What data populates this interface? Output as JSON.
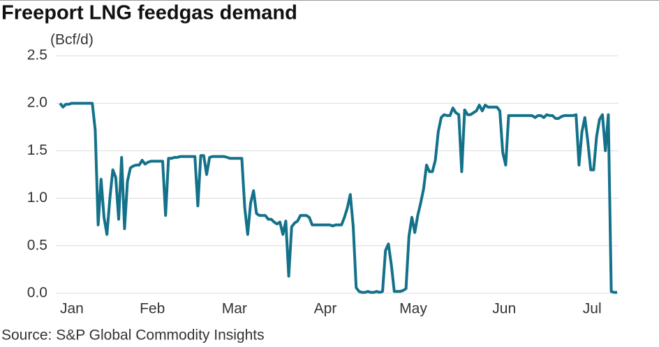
{
  "chart_data": {
    "type": "line",
    "title": "Freeport LNG feedgas demand",
    "y_label": "(Bcf/d)",
    "source": "Source: S&P Global Commodity Insights",
    "categories": [
      "Jan",
      null,
      null,
      null,
      null,
      null,
      null,
      null,
      null,
      null,
      null,
      null,
      null,
      null,
      null,
      null,
      null,
      null,
      null,
      null,
      null,
      null,
      null,
      null,
      null,
      null,
      null,
      null,
      null,
      null,
      null,
      "Feb",
      null,
      null,
      null,
      null,
      null,
      null,
      null,
      null,
      null,
      null,
      null,
      null,
      null,
      null,
      null,
      null,
      null,
      null,
      null,
      null,
      null,
      null,
      null,
      null,
      null,
      null,
      null,
      "Mar",
      null,
      null,
      null,
      null,
      null,
      null,
      null,
      null,
      null,
      null,
      null,
      null,
      null,
      null,
      null,
      null,
      null,
      null,
      null,
      null,
      null,
      null,
      null,
      null,
      null,
      null,
      null,
      null,
      null,
      null,
      "Apr",
      null,
      null,
      null,
      null,
      null,
      null,
      null,
      null,
      null,
      null,
      null,
      null,
      null,
      null,
      null,
      null,
      null,
      null,
      null,
      null,
      null,
      null,
      null,
      null,
      null,
      null,
      null,
      null,
      null,
      "May",
      null,
      null,
      null,
      null,
      null,
      null,
      null,
      null,
      null,
      null,
      null,
      null,
      null,
      null,
      null,
      null,
      null,
      null,
      null,
      null,
      null,
      null,
      null,
      null,
      null,
      null,
      null,
      null,
      null,
      null,
      "Jun",
      null,
      null,
      null,
      null,
      null,
      null,
      null,
      null,
      null,
      null,
      null,
      null,
      null,
      null,
      null,
      null,
      null,
      null,
      null,
      null,
      null,
      null,
      null,
      null,
      null,
      null,
      null,
      null,
      null,
      "Jul",
      null,
      null,
      null,
      null,
      null,
      null,
      null,
      null,
      null
    ],
    "values": [
      2.0,
      1.96,
      1.99,
      1.99,
      2.0,
      2.0,
      2.0,
      2.0,
      2.0,
      2.0,
      2.0,
      2.0,
      1.72,
      0.72,
      1.2,
      0.8,
      0.62,
      1.0,
      1.3,
      1.22,
      0.78,
      1.43,
      0.68,
      1.18,
      1.32,
      1.34,
      1.35,
      1.35,
      1.4,
      1.36,
      1.38,
      1.39,
      1.39,
      1.39,
      1.39,
      1.39,
      0.82,
      1.42,
      1.42,
      1.43,
      1.43,
      1.44,
      1.44,
      1.44,
      1.44,
      1.44,
      1.44,
      0.92,
      1.45,
      1.45,
      1.25,
      1.43,
      1.44,
      1.44,
      1.44,
      1.44,
      1.44,
      1.43,
      1.42,
      1.42,
      1.42,
      1.42,
      1.42,
      0.9,
      0.62,
      0.95,
      1.08,
      0.84,
      0.82,
      0.82,
      0.82,
      0.78,
      0.78,
      0.75,
      0.73,
      0.75,
      0.62,
      0.76,
      0.18,
      0.7,
      0.74,
      0.76,
      0.82,
      0.82,
      0.82,
      0.8,
      0.72,
      0.72,
      0.72,
      0.72,
      0.72,
      0.72,
      0.72,
      0.71,
      0.72,
      0.72,
      0.72,
      0.8,
      0.9,
      1.04,
      0.7,
      0.06,
      0.02,
      0.01,
      0.01,
      0.02,
      0.01,
      0.01,
      0.02,
      0.01,
      0.02,
      0.45,
      0.52,
      0.3,
      0.02,
      0.02,
      0.02,
      0.03,
      0.05,
      0.6,
      0.8,
      0.64,
      0.82,
      0.95,
      1.1,
      1.35,
      1.28,
      1.28,
      1.4,
      1.7,
      1.85,
      1.88,
      1.87,
      1.87,
      1.95,
      1.9,
      1.88,
      1.28,
      1.93,
      1.88,
      1.88,
      1.9,
      1.92,
      1.98,
      1.92,
      1.98,
      1.96,
      1.96,
      1.96,
      1.96,
      1.92,
      1.48,
      1.35,
      1.87,
      1.87,
      1.87,
      1.87,
      1.87,
      1.87,
      1.87,
      1.87,
      1.87,
      1.85,
      1.87,
      1.87,
      1.85,
      1.88,
      1.87,
      1.87,
      1.84,
      1.84,
      1.86,
      1.87,
      1.87,
      1.87,
      1.87,
      1.88,
      1.35,
      1.7,
      1.85,
      1.6,
      1.3,
      1.3,
      1.65,
      1.83,
      1.88,
      1.5,
      1.88,
      0.02,
      0.01,
      0.01
    ],
    "color": "#13718a",
    "ylim": [
      0,
      2.5
    ],
    "yticks": [
      {
        "value": 0,
        "label": "0.0"
      },
      0.5,
      {
        "value": 1,
        "label": "1.0"
      },
      1.5,
      {
        "value": 2,
        "label": "2.0"
      },
      2.5
    ],
    "grid": true
  }
}
